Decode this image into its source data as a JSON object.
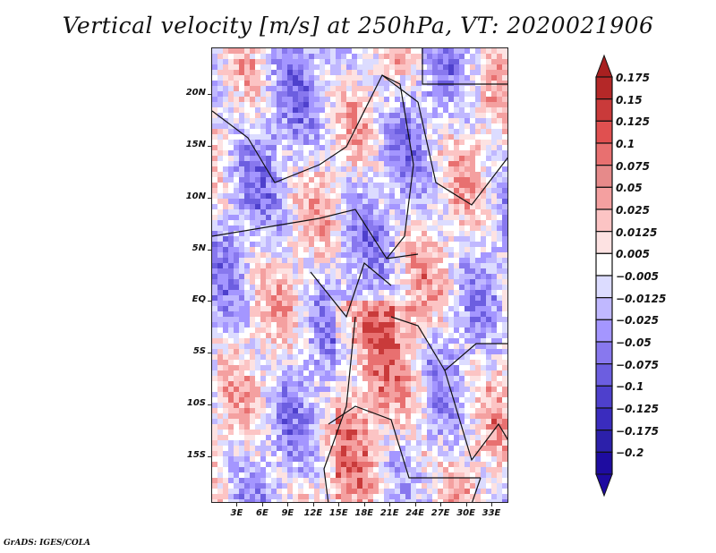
{
  "title": "Vertical velocity [m/s] at 250hPa, VT: 2020021906",
  "footer": "GrADS: IGES/COLA",
  "map": {
    "lon_range": [
      0,
      35
    ],
    "lat_range": [
      -19.5,
      24.5
    ],
    "y_ticks": [
      {
        "label": "20N",
        "lat": 20
      },
      {
        "label": "15N",
        "lat": 15
      },
      {
        "label": "10N",
        "lat": 10
      },
      {
        "label": "5N",
        "lat": 5
      },
      {
        "label": "EQ",
        "lat": 0
      },
      {
        "label": "5S",
        "lat": -5
      },
      {
        "label": "10S",
        "lat": -10
      },
      {
        "label": "15S",
        "lat": -15
      }
    ],
    "x_ticks": [
      {
        "label": "3E",
        "lon": 3
      },
      {
        "label": "6E",
        "lon": 6
      },
      {
        "label": "9E",
        "lon": 9
      },
      {
        "label": "12E",
        "lon": 12
      },
      {
        "label": "15E",
        "lon": 15
      },
      {
        "label": "18E",
        "lon": 18
      },
      {
        "label": "21E",
        "lon": 21
      },
      {
        "label": "24E",
        "lon": 24
      },
      {
        "label": "27E",
        "lon": 27
      },
      {
        "label": "30E",
        "lon": 30
      },
      {
        "label": "33E",
        "lon": 33
      }
    ]
  },
  "colorbar": {
    "levels": [
      {
        "label": "0.175",
        "color": "#b42828"
      },
      {
        "label": "0.15",
        "color": "#c93a3a"
      },
      {
        "label": "0.125",
        "color": "#e05050"
      },
      {
        "label": "0.1",
        "color": "#e87070"
      },
      {
        "label": "0.075",
        "color": "#e68a8a"
      },
      {
        "label": "0.05",
        "color": "#f4a0a0"
      },
      {
        "label": "0.025",
        "color": "#fcc4c4"
      },
      {
        "label": "0.0125",
        "color": "#fde2e2"
      },
      {
        "label": "0.005",
        "color": "#ffffff"
      },
      {
        "label": "-0.005",
        "color": "#dcdcff"
      },
      {
        "label": "-0.0125",
        "color": "#c0b8ff"
      },
      {
        "label": "-0.025",
        "color": "#a496ff"
      },
      {
        "label": "-0.05",
        "color": "#8878ee"
      },
      {
        "label": "-0.075",
        "color": "#6c5ee0"
      },
      {
        "label": "-0.1",
        "color": "#4e40cc"
      },
      {
        "label": "-0.125",
        "color": "#3a2cbe"
      },
      {
        "label": "-0.175",
        "color": "#2c20aa"
      },
      {
        "label": "-0.2",
        "color": "#1e0ca0"
      }
    ],
    "top_arrow_color": "#a82020",
    "bottom_arrow_color": "#1e0aa0"
  }
}
